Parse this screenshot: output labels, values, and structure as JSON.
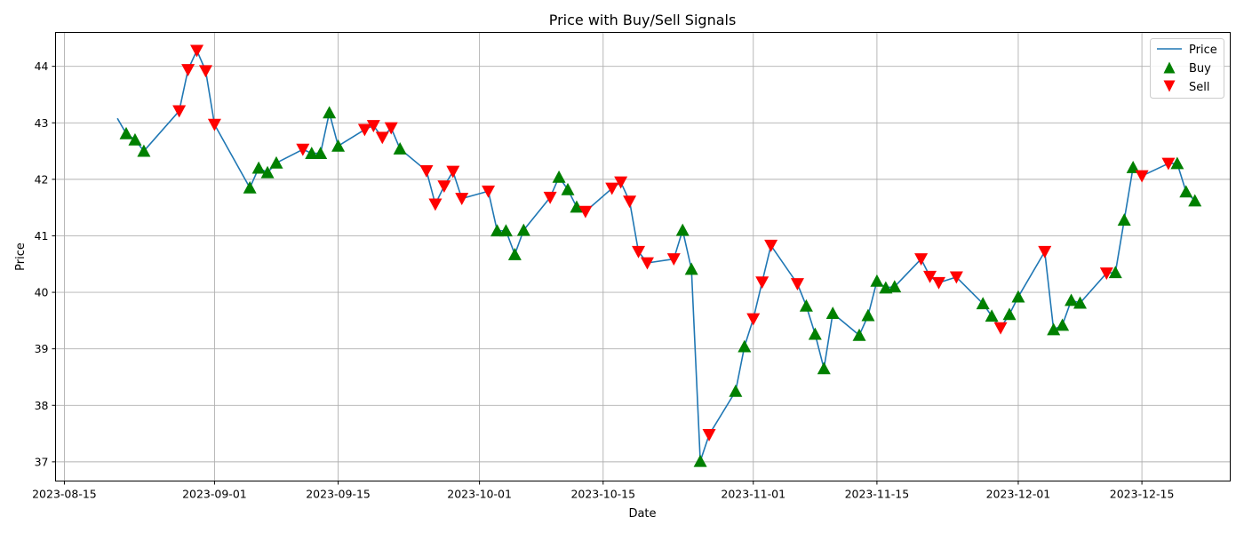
{
  "chart_data": {
    "type": "line",
    "title": "Price with Buy/Sell Signals",
    "xlabel": "Date",
    "ylabel": "Price",
    "xlim": [
      "2023-08-14",
      "2023-12-25"
    ],
    "ylim": [
      36.66,
      44.6
    ],
    "x_ticks": [
      "2023-08-15",
      "2023-09-01",
      "2023-09-15",
      "2023-10-01",
      "2023-10-15",
      "2023-11-01",
      "2023-11-15",
      "2023-12-01",
      "2023-12-15"
    ],
    "y_ticks": [
      37,
      38,
      39,
      40,
      41,
      42,
      43,
      44
    ],
    "grid": true,
    "legend_position": "upper right",
    "legend": [
      "Price",
      "Buy",
      "Sell"
    ],
    "colors": {
      "price": "#1f77b4",
      "buy": "#008000",
      "sell": "#ff0000"
    },
    "series": [
      {
        "name": "Price",
        "marker": "line",
        "x": [
          "2023-08-21",
          "2023-08-22",
          "2023-08-23",
          "2023-08-24",
          "2023-08-28",
          "2023-08-29",
          "2023-08-30",
          "2023-08-31",
          "2023-09-01",
          "2023-09-05",
          "2023-09-06",
          "2023-09-07",
          "2023-09-08",
          "2023-09-11",
          "2023-09-12",
          "2023-09-13",
          "2023-09-14",
          "2023-09-15",
          "2023-09-18",
          "2023-09-19",
          "2023-09-20",
          "2023-09-21",
          "2023-09-22",
          "2023-09-25",
          "2023-09-26",
          "2023-09-27",
          "2023-09-28",
          "2023-09-29",
          "2023-10-02",
          "2023-10-03",
          "2023-10-04",
          "2023-10-05",
          "2023-10-06",
          "2023-10-09",
          "2023-10-10",
          "2023-10-11",
          "2023-10-12",
          "2023-10-13",
          "2023-10-16",
          "2023-10-17",
          "2023-10-18",
          "2023-10-19",
          "2023-10-20",
          "2023-10-23",
          "2023-10-24",
          "2023-10-25",
          "2023-10-26",
          "2023-10-27",
          "2023-10-30",
          "2023-10-31",
          "2023-11-01",
          "2023-11-02",
          "2023-11-03",
          "2023-11-06",
          "2023-11-07",
          "2023-11-08",
          "2023-11-09",
          "2023-11-10",
          "2023-11-13",
          "2023-11-14",
          "2023-11-15",
          "2023-11-16",
          "2023-11-17",
          "2023-11-20",
          "2023-11-21",
          "2023-11-22",
          "2023-11-24",
          "2023-11-27",
          "2023-11-28",
          "2023-11-29",
          "2023-11-30",
          "2023-12-01",
          "2023-12-04",
          "2023-12-05",
          "2023-12-06",
          "2023-12-07",
          "2023-12-08",
          "2023-12-11",
          "2023-12-12",
          "2023-12-13",
          "2023-12-14",
          "2023-12-15",
          "2023-12-18",
          "2023-12-19",
          "2023-12-20",
          "2023-12-21"
        ],
        "values": [
          43.08,
          42.81,
          42.7,
          42.5,
          43.21,
          43.94,
          44.28,
          43.92,
          42.97,
          41.85,
          42.2,
          42.12,
          42.29,
          42.53,
          42.46,
          42.46,
          43.18,
          42.59,
          42.88,
          42.95,
          42.74,
          42.91,
          42.54,
          42.15,
          41.56,
          41.88,
          42.14,
          41.66,
          41.79,
          41.09,
          41.09,
          40.67,
          41.1,
          41.68,
          42.04,
          41.82,
          41.51,
          41.43,
          41.84,
          41.95,
          41.61,
          40.72,
          40.52,
          40.59,
          41.1,
          40.41,
          37.01,
          37.48,
          38.25,
          39.04,
          39.53,
          40.18,
          40.83,
          40.15,
          39.76,
          39.26,
          38.65,
          39.63,
          39.24,
          39.59,
          40.2,
          40.08,
          40.1,
          40.59,
          40.28,
          40.17,
          40.27,
          39.8,
          39.58,
          39.37,
          39.61,
          39.92,
          40.72,
          39.34,
          39.42,
          39.86,
          39.81,
          40.34,
          40.35,
          41.28,
          42.21,
          42.06,
          42.28,
          42.28,
          41.78,
          41.62
        ]
      },
      {
        "name": "Buy",
        "marker": "triangle-up",
        "x": [
          "2023-08-22",
          "2023-08-23",
          "2023-08-24",
          "2023-09-05",
          "2023-09-06",
          "2023-09-07",
          "2023-09-08",
          "2023-09-12",
          "2023-09-13",
          "2023-09-14",
          "2023-09-15",
          "2023-09-22",
          "2023-10-03",
          "2023-10-04",
          "2023-10-05",
          "2023-10-06",
          "2023-10-10",
          "2023-10-11",
          "2023-10-12",
          "2023-10-24",
          "2023-10-25",
          "2023-10-26",
          "2023-10-30",
          "2023-10-31",
          "2023-11-07",
          "2023-11-08",
          "2023-11-09",
          "2023-11-10",
          "2023-11-13",
          "2023-11-14",
          "2023-11-15",
          "2023-11-16",
          "2023-11-17",
          "2023-11-27",
          "2023-11-28",
          "2023-11-30",
          "2023-12-01",
          "2023-12-05",
          "2023-12-06",
          "2023-12-07",
          "2023-12-08",
          "2023-12-12",
          "2023-12-13",
          "2023-12-14",
          "2023-12-19",
          "2023-12-20",
          "2023-12-21"
        ],
        "values": [
          42.81,
          42.7,
          42.5,
          41.85,
          42.2,
          42.12,
          42.29,
          42.46,
          42.46,
          43.18,
          42.59,
          42.54,
          41.09,
          41.09,
          40.67,
          41.1,
          42.04,
          41.82,
          41.51,
          41.1,
          40.41,
          37.01,
          38.25,
          39.04,
          39.76,
          39.26,
          38.65,
          39.63,
          39.24,
          39.59,
          40.2,
          40.08,
          40.1,
          39.8,
          39.58,
          39.61,
          39.92,
          39.34,
          39.42,
          39.86,
          39.81,
          40.35,
          41.28,
          42.21,
          42.28,
          41.78,
          41.62
        ]
      },
      {
        "name": "Sell",
        "marker": "triangle-down",
        "x": [
          "2023-08-28",
          "2023-08-29",
          "2023-08-30",
          "2023-08-31",
          "2023-09-01",
          "2023-09-11",
          "2023-09-18",
          "2023-09-19",
          "2023-09-20",
          "2023-09-21",
          "2023-09-25",
          "2023-09-26",
          "2023-09-27",
          "2023-09-28",
          "2023-09-29",
          "2023-10-02",
          "2023-10-09",
          "2023-10-13",
          "2023-10-16",
          "2023-10-17",
          "2023-10-18",
          "2023-10-19",
          "2023-10-20",
          "2023-10-23",
          "2023-10-27",
          "2023-11-01",
          "2023-11-02",
          "2023-11-03",
          "2023-11-06",
          "2023-11-20",
          "2023-11-21",
          "2023-11-22",
          "2023-11-24",
          "2023-11-29",
          "2023-12-04",
          "2023-12-11",
          "2023-12-15",
          "2023-12-18"
        ],
        "values": [
          43.21,
          43.94,
          44.28,
          43.92,
          42.97,
          42.53,
          42.88,
          42.95,
          42.74,
          42.91,
          42.15,
          41.56,
          41.88,
          42.14,
          41.66,
          41.79,
          41.68,
          41.43,
          41.84,
          41.95,
          41.61,
          40.72,
          40.52,
          40.59,
          37.48,
          39.53,
          40.18,
          40.83,
          40.15,
          40.59,
          40.28,
          40.17,
          40.27,
          39.37,
          40.72,
          40.34,
          42.06,
          42.28
        ]
      }
    ]
  }
}
